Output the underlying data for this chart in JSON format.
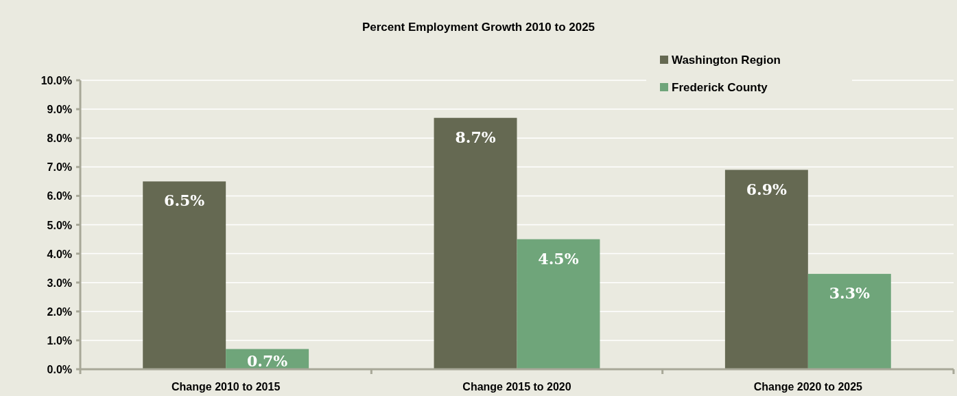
{
  "chart_data": {
    "type": "bar",
    "title": "Percent Employment Growth 2010 to 2025",
    "categories": [
      "Change 2010 to 2015",
      "Change 2015 to 2020",
      "Change 2020 to 2025"
    ],
    "series": [
      {
        "name": "Washington Region",
        "color": "#656952",
        "values": [
          6.5,
          8.7,
          6.9
        ]
      },
      {
        "name": "Frederick County",
        "color": "#6fa57a",
        "values": [
          0.7,
          4.5,
          3.3
        ]
      }
    ],
    "ylim": [
      0,
      10
    ],
    "yticks": [
      {
        "value": 0,
        "label": "0.0%"
      },
      {
        "value": 1,
        "label": "1.0%"
      },
      {
        "value": 2,
        "label": "2.0%"
      },
      {
        "value": 3,
        "label": "3.0%"
      },
      {
        "value": 4,
        "label": "4.0%"
      },
      {
        "value": 5,
        "label": "5.0%"
      },
      {
        "value": 6,
        "label": "6.0%"
      },
      {
        "value": 7,
        "label": "7.0%"
      },
      {
        "value": 8,
        "label": "8.0%"
      },
      {
        "value": 9,
        "label": "9.0%"
      },
      {
        "value": 10,
        "label": "10.0%"
      }
    ],
    "value_labels": [
      [
        "6.5%",
        "8.7%",
        "6.9%"
      ],
      [
        "0.7%",
        "4.5%",
        "3.3%"
      ]
    ],
    "grid": "y",
    "legend": "top right"
  }
}
